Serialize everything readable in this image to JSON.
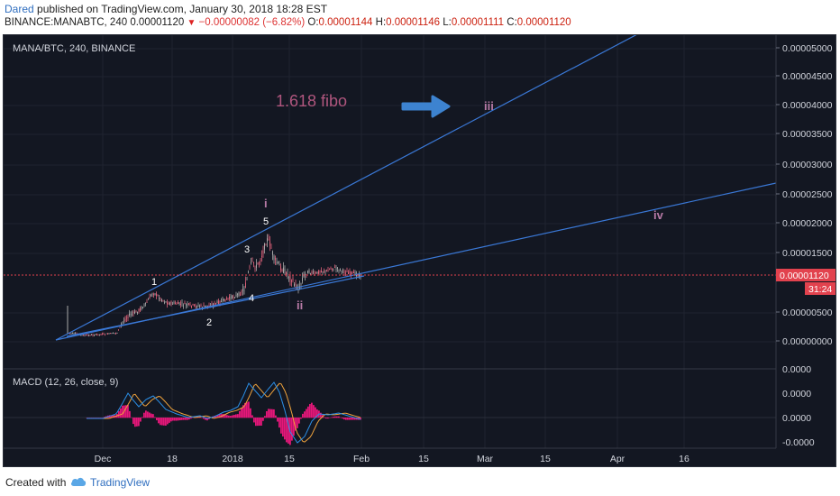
{
  "header": {
    "author": "Dared",
    "published_text": "published on TradingView.com, January 30, 2018 18:28 EST",
    "symbol": "BINANCE:MANABTC, 240",
    "last": "0.00001120",
    "change": "−0.00000082 (−6.82%)",
    "o_label": "O:",
    "o_value": "0.00001144",
    "h_label": "H:",
    "h_value": "0.00001146",
    "l_label": "L:",
    "l_value": "0.00001111",
    "c_label": "C:",
    "c_value": "0.00001120"
  },
  "chart": {
    "pane_title": "MANA/BTC, 240, BINANCE",
    "macd_title": "MACD (12, 26, close, 9)",
    "price_ticks": [
      "0.00005000",
      "0.00004500",
      "0.00004000",
      "0.00003500",
      "0.00003000",
      "0.00002500",
      "0.00002000",
      "0.00001500",
      "0.00000500",
      "0.00000000"
    ],
    "current_price_label": "0.00001120",
    "countdown_label": "31:24",
    "macd_ticks": [
      "0.0000",
      "0.0000",
      "0.0000",
      "-0.0000"
    ],
    "x_ticks": [
      "Dec",
      "18",
      "2018",
      "15",
      "Feb",
      "15",
      "Mar",
      "15",
      "Apr",
      "16"
    ],
    "annotations": {
      "fibo": "1.618 fibo",
      "wave_i": "i",
      "wave_ii": "ii",
      "wave_iii": "iii",
      "wave_iv": "iv",
      "w1": "1",
      "w2": "2",
      "w3": "3",
      "w4": "4",
      "w5": "5"
    },
    "colors": {
      "background": "#131722",
      "candle_up": "#a8a8a8",
      "candle_down": "#e0627a",
      "trendline": "#3a78d6",
      "arrow": "#3d83d0",
      "fibo_text": "#b0567e",
      "wave_roman": "#b77aa6",
      "macd_line": "#2b8fe6",
      "signal_line": "#f0a33c",
      "histogram": "#e6177a",
      "price_badge": "#e2424e"
    },
    "chart_data": {
      "type": "candlestick",
      "title": "MANA/BTC, 240, BINANCE",
      "y_range": [
        0.0,
        5.2e-05
      ],
      "x_labels": [
        "Dec",
        "18",
        "2018",
        "15",
        "Feb",
        "15",
        "Mar",
        "15",
        "Apr",
        "16"
      ],
      "last_close": 1.12e-05,
      "macd": {
        "fast": 12,
        "slow": 26,
        "source": "close",
        "signal": 9
      }
    }
  },
  "footer": {
    "created_with": "Created with",
    "brand": "TradingView"
  }
}
